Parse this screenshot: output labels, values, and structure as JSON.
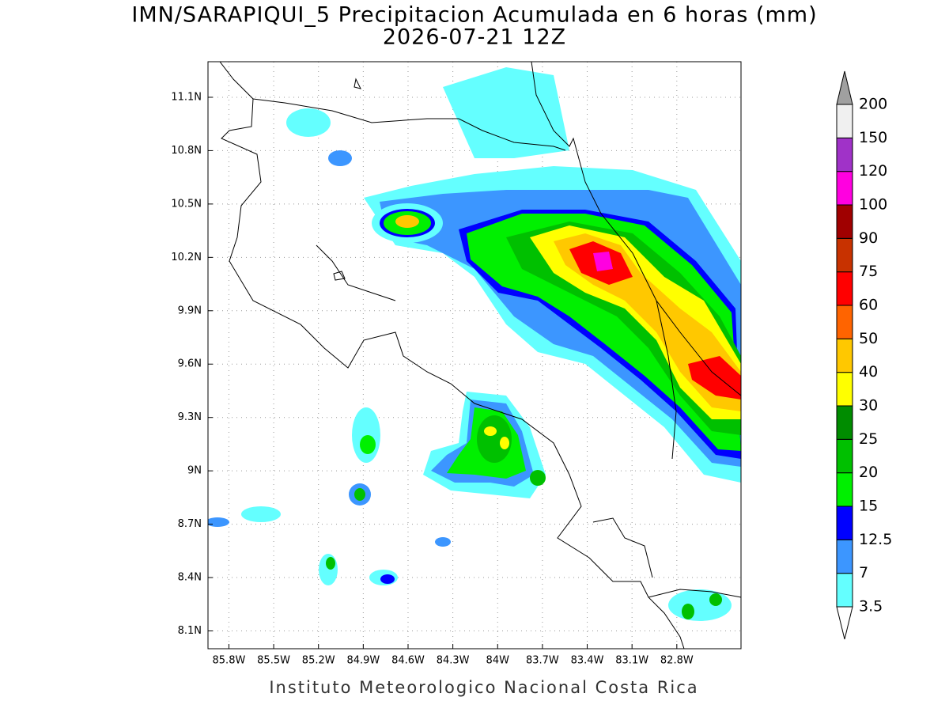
{
  "title": "IMN/SARAPIQUI_5 Precipitacion Acumulada en 6 horas (mm)",
  "subtitle": "2026-07-21 12Z",
  "footer": "Instituto Meteorologico Nacional Costa Rica",
  "map": {
    "lonlim": [
      -85.94,
      -82.37
    ],
    "latlim": [
      8.0,
      11.3
    ],
    "grid": true,
    "lon_ticks": [
      {
        "value": -85.8,
        "label": "85.8W"
      },
      {
        "value": -85.5,
        "label": "85.5W"
      },
      {
        "value": -85.2,
        "label": "85.2W"
      },
      {
        "value": -84.9,
        "label": "84.9W"
      },
      {
        "value": -84.6,
        "label": "84.6W"
      },
      {
        "value": -84.3,
        "label": "84.3W"
      },
      {
        "value": -84.0,
        "label": "84W"
      },
      {
        "value": -83.7,
        "label": "83.7W"
      },
      {
        "value": -83.4,
        "label": "83.4W"
      },
      {
        "value": -83.1,
        "label": "83.1W"
      },
      {
        "value": -82.8,
        "label": "82.8W"
      }
    ],
    "lat_ticks": [
      {
        "value": 8.1,
        "label": "8.1N"
      },
      {
        "value": 8.4,
        "label": "8.4N"
      },
      {
        "value": 8.7,
        "label": "8.7N"
      },
      {
        "value": 9.0,
        "label": "9N"
      },
      {
        "value": 9.3,
        "label": "9.3N"
      },
      {
        "value": 9.6,
        "label": "9.6N"
      },
      {
        "value": 9.9,
        "label": "9.9N"
      },
      {
        "value": 10.2,
        "label": "10.2N"
      },
      {
        "value": 10.5,
        "label": "10.5N"
      },
      {
        "value": 10.8,
        "label": "10.8N"
      },
      {
        "value": 11.1,
        "label": "11.1N"
      }
    ]
  },
  "colorbar": {
    "levels": [
      3.5,
      7,
      12.5,
      15,
      20,
      25,
      30,
      40,
      50,
      60,
      75,
      90,
      100,
      120,
      150,
      200
    ],
    "colors": [
      "#ffffff",
      "#64ffff",
      "#3c96ff",
      "#0000ff",
      "#00f000",
      "#00c000",
      "#008c00",
      "#ffff00",
      "#ffc800",
      "#ff6400",
      "#ff0000",
      "#c83200",
      "#a00000",
      "#ff00e0",
      "#a032c8",
      "#f0f0f0",
      "#a0a0a0"
    ]
  }
}
